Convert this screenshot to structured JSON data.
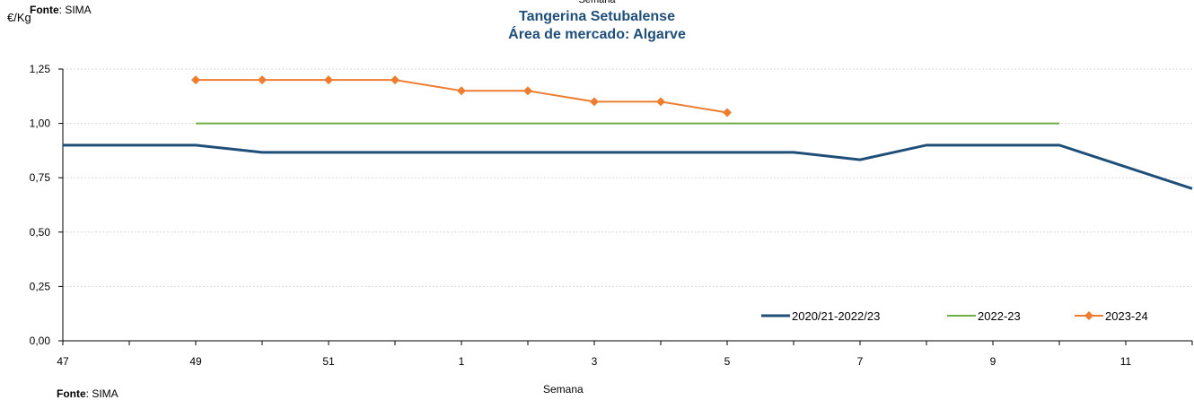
{
  "source": {
    "label": "Fonte",
    "value": ": SIMA"
  },
  "chart_data": {
    "type": "line",
    "title": "Tangerina Setubalense",
    "subtitle": "Área de mercado: Algarve",
    "xlabel": "Semana",
    "ylabel": "€/Kg",
    "x_tick_labels": [
      "47",
      "49",
      "51",
      "1",
      "3",
      "5",
      "7",
      "9",
      "11"
    ],
    "weeks": [
      "47",
      "48",
      "49",
      "50",
      "51",
      "52",
      "1",
      "2",
      "3",
      "4",
      "5",
      "6",
      "7",
      "8",
      "9",
      "10",
      "11",
      "12"
    ],
    "ylim": [
      0,
      1.25
    ],
    "y_ticks": [
      "0,00",
      "0,25",
      "0,50",
      "0,75",
      "1,00",
      "1,25"
    ],
    "y_tick_values": [
      0,
      0.25,
      0.5,
      0.75,
      1.0,
      1.25
    ],
    "grid": true,
    "legend_position": "bottom-right",
    "series": [
      {
        "name": "2020/21-2022/23",
        "color": "#1f4e79",
        "marker": "none",
        "values": [
          0.9,
          0.9,
          0.9,
          0.867,
          0.867,
          0.867,
          0.867,
          0.867,
          0.867,
          0.867,
          0.867,
          0.867,
          0.833,
          0.9,
          0.9,
          0.9,
          0.8,
          0.7
        ]
      },
      {
        "name": "2022-23",
        "color": "#70ad47",
        "marker": "none",
        "values": [
          null,
          null,
          1.0,
          1.0,
          1.0,
          1.0,
          1.0,
          1.0,
          1.0,
          1.0,
          1.0,
          1.0,
          1.0,
          1.0,
          1.0,
          1.0,
          null,
          null
        ]
      },
      {
        "name": "2023-24",
        "color": "#ed7d31",
        "marker": "diamond",
        "values": [
          null,
          null,
          1.2,
          1.2,
          1.2,
          1.2,
          1.15,
          1.15,
          1.1,
          1.1,
          1.05,
          null,
          null,
          null,
          null,
          null,
          null,
          null
        ]
      }
    ]
  }
}
